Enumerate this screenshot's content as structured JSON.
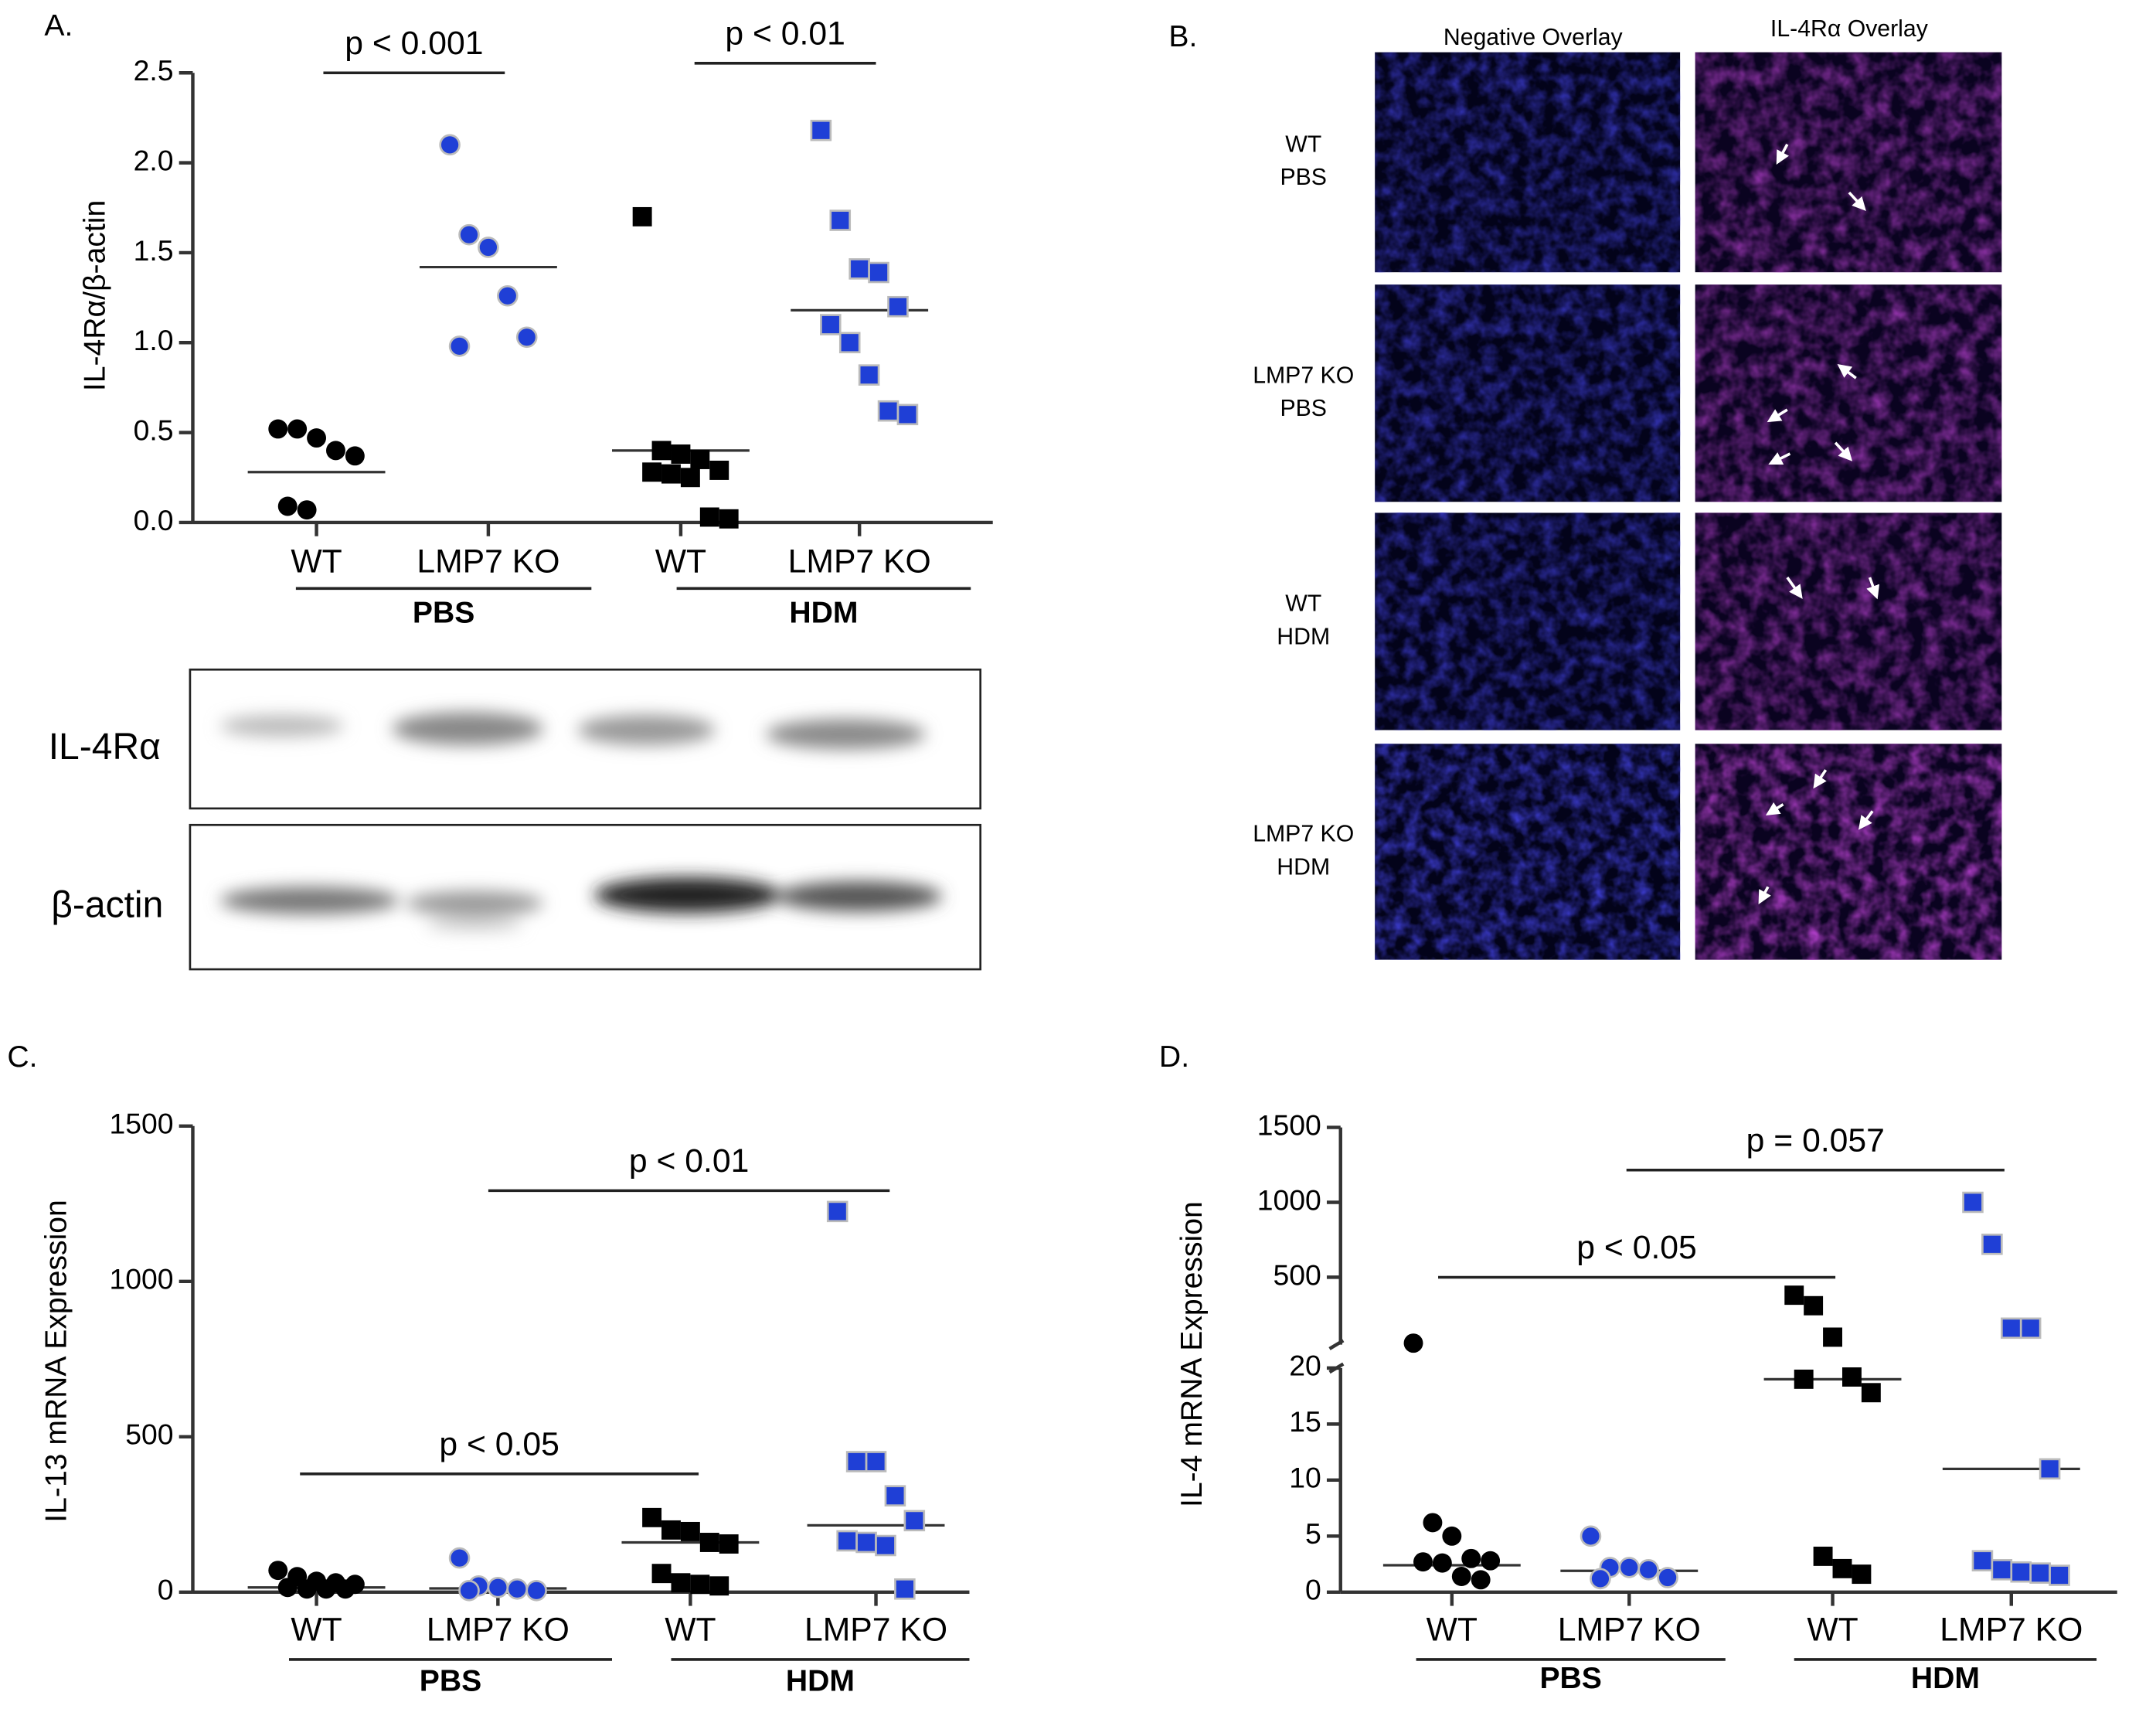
{
  "chart_data": [
    {
      "type": "dot",
      "ylabel": "IL-4Rα/β-actin",
      "categories": [
        "WT",
        "LMP7 KO",
        "WT",
        "LMP7 KO"
      ],
      "groups": [
        "PBS",
        "HDM"
      ],
      "points": [
        [
          0.52,
          0.52,
          0.47,
          0.4,
          0.37,
          0.09,
          0.07
        ],
        [
          2.1,
          1.6,
          1.53,
          1.26,
          1.03,
          0.98
        ],
        [
          1.7,
          0.4,
          0.38,
          0.35,
          0.29,
          0.28,
          0.27,
          0.25,
          0.03,
          0.02
        ],
        [
          2.18,
          1.68,
          1.41,
          1.39,
          1.2,
          1.1,
          1.0,
          0.82,
          0.62,
          0.6
        ]
      ],
      "medians": [
        0.28,
        1.42,
        0.4,
        1.18
      ],
      "colors": [
        "#000000",
        "#1f3fd6",
        "#000000",
        "#1f3fd6"
      ],
      "markers": [
        "circle",
        "circle",
        "square",
        "square"
      ],
      "annotations": [
        "p < 0.001",
        "p < 0.01"
      ],
      "ylim": [
        0,
        2.5
      ],
      "yticks": [
        {
          "value": 0,
          "label": "0.0"
        },
        0.5,
        {
          "value": 1,
          "label": "1.0"
        },
        1.5,
        {
          "value": 2,
          "label": "2.0"
        },
        2.5
      ]
    },
    {
      "type": "dot",
      "ylabel": "IL-13 mRNA Expression",
      "categories": [
        "WT",
        "LMP7 KO",
        "WT",
        "LMP7 KO"
      ],
      "groups": [
        "PBS",
        "HDM"
      ],
      "points": [
        [
          70,
          50,
          35,
          30,
          25,
          15,
          10,
          10,
          10
        ],
        [
          110,
          20,
          15,
          10,
          5,
          5
        ],
        [
          240,
          200,
          195,
          160,
          155,
          60,
          30,
          25,
          20
        ],
        [
          1225,
          420,
          420,
          310,
          230,
          165,
          160,
          150,
          10
        ]
      ],
      "medians": [
        15,
        12,
        160,
        215
      ],
      "colors": [
        "#000000",
        "#1f3fd6",
        "#000000",
        "#1f3fd6"
      ],
      "markers": [
        "circle",
        "circle",
        "square",
        "square"
      ],
      "annotations": [
        "p < 0.01",
        "p < 0.05"
      ],
      "ylim": [
        0,
        1500
      ],
      "yticks": [
        0,
        500,
        1000,
        1500
      ]
    },
    {
      "type": "dot-broken",
      "ylabel": "IL-4 mRNA Expression",
      "categories": [
        "WT",
        "LMP7 KO",
        "WT",
        "LMP7 KO"
      ],
      "groups": [
        "PBS",
        "HDM"
      ],
      "points": [
        [
          60,
          6.2,
          5,
          3,
          2.8,
          2.7,
          2.6,
          1.4,
          1.1
        ],
        [
          5,
          2.2,
          2.2,
          2,
          1.3,
          1.2
        ],
        [
          380,
          310,
          100,
          19.2,
          17.8,
          19,
          3.2,
          2.1,
          1.6
        ],
        [
          1000,
          720,
          160,
          160,
          11,
          2.8,
          2,
          1.8,
          1.7,
          1.5
        ]
      ],
      "medians": [
        2.4,
        1.9,
        19,
        11
      ],
      "colors": [
        "#000000",
        "#1f3fd6",
        "#000000",
        "#1f3fd6"
      ],
      "markers": [
        "circle",
        "circle",
        "square",
        "square"
      ],
      "annotations": [
        "p = 0.057",
        "p < 0.05"
      ],
      "ylim": [
        0,
        20
      ],
      "yticks": [
        0,
        5,
        10,
        15,
        20
      ],
      "ylim_upper": [
        50,
        1500
      ],
      "yticks_upper": [
        500,
        1000,
        1500
      ]
    }
  ],
  "figure": {
    "panel_labels": [
      "A.",
      "B.",
      "C.",
      "D."
    ],
    "blot_rows": [
      "IL-4Rα",
      "β-actin"
    ],
    "micrograph_columns": [
      "Negative Overlay",
      "IL-4Rα Overlay"
    ],
    "micrograph_rows": [
      [
        "WT",
        "PBS"
      ],
      [
        "LMP7 KO",
        "PBS"
      ],
      [
        "WT",
        "HDM"
      ],
      [
        "LMP7 KO",
        "HDM"
      ]
    ]
  }
}
